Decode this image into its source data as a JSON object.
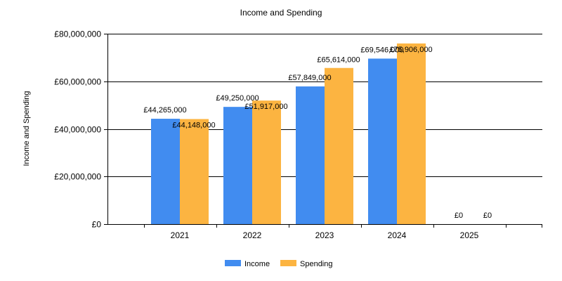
{
  "chart_data": {
    "type": "bar",
    "title": "Income and Spending",
    "xlabel": "",
    "ylabel": "Income and Spending",
    "categories": [
      "2021",
      "2022",
      "2023",
      "2024",
      "2025"
    ],
    "series": [
      {
        "name": "Income",
        "color": "#418cf0",
        "values": [
          44265000,
          49250000,
          57849000,
          69546000,
          0
        ],
        "labels": [
          "£44,265,000",
          "£49,250,000",
          "£57,849,000",
          "£69,546,000",
          "£0"
        ]
      },
      {
        "name": "Spending",
        "color": "#fcb441",
        "values": [
          44148000,
          51917000,
          65614000,
          75906000,
          0
        ],
        "labels": [
          "£44,148,000",
          "£51,917,000",
          "£65,614,000",
          "£75,906,000",
          "£0"
        ]
      }
    ],
    "ylim": [
      0,
      80000000
    ],
    "yticks": [
      0,
      20000000,
      40000000,
      60000000,
      80000000
    ],
    "ytick_labels": [
      "£0",
      "£20,000,000",
      "£40,000,000",
      "£60,000,000",
      "£80,000,000"
    ],
    "grid": true,
    "legend_position": "bottom-center"
  }
}
